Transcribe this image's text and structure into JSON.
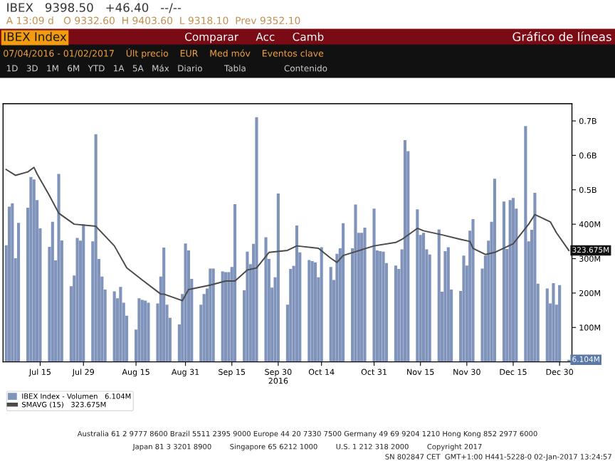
{
  "chart_data": {
    "type": "bar",
    "title": "IBEX Index",
    "subtitle": "Gráfico de líneas",
    "x": [
      "2016-07-04",
      "2016-07-05",
      "2016-07-06",
      "2016-07-07",
      "2016-07-08",
      "2016-07-11",
      "2016-07-12",
      "2016-07-13",
      "2016-07-14",
      "2016-07-15",
      "2016-07-18",
      "2016-07-19",
      "2016-07-20",
      "2016-07-21",
      "2016-07-22",
      "2016-07-25",
      "2016-07-26",
      "2016-07-27",
      "2016-07-28",
      "2016-07-29",
      "2016-08-01",
      "2016-08-02",
      "2016-08-03",
      "2016-08-04",
      "2016-08-05",
      "2016-08-08",
      "2016-08-09",
      "2016-08-10",
      "2016-08-11",
      "2016-08-12",
      "2016-08-15",
      "2016-08-16",
      "2016-08-17",
      "2016-08-18",
      "2016-08-19",
      "2016-08-22",
      "2016-08-23",
      "2016-08-24",
      "2016-08-25",
      "2016-08-26",
      "2016-08-29",
      "2016-08-30",
      "2016-08-31",
      "2016-09-01",
      "2016-09-02",
      "2016-09-05",
      "2016-09-06",
      "2016-09-07",
      "2016-09-08",
      "2016-09-09",
      "2016-09-12",
      "2016-09-13",
      "2016-09-14",
      "2016-09-15",
      "2016-09-16",
      "2016-09-19",
      "2016-09-20",
      "2016-09-21",
      "2016-09-22",
      "2016-09-23",
      "2016-09-26",
      "2016-09-27",
      "2016-09-28",
      "2016-09-29",
      "2016-09-30",
      "2016-10-03",
      "2016-10-04",
      "2016-10-05",
      "2016-10-06",
      "2016-10-07",
      "2016-10-10",
      "2016-10-11",
      "2016-10-12",
      "2016-10-13",
      "2016-10-14",
      "2016-10-17",
      "2016-10-18",
      "2016-10-19",
      "2016-10-20",
      "2016-10-21",
      "2016-10-24",
      "2016-10-25",
      "2016-10-26",
      "2016-10-27",
      "2016-10-28",
      "2016-10-31",
      "2016-11-01",
      "2016-11-02",
      "2016-11-03",
      "2016-11-04",
      "2016-11-07",
      "2016-11-08",
      "2016-11-09",
      "2016-11-10",
      "2016-11-11",
      "2016-11-14",
      "2016-11-15",
      "2016-11-16",
      "2016-11-17",
      "2016-11-18",
      "2016-11-21",
      "2016-11-22",
      "2016-11-23",
      "2016-11-24",
      "2016-11-25",
      "2016-11-28",
      "2016-11-29",
      "2016-11-30",
      "2016-12-01",
      "2016-12-02",
      "2016-12-05",
      "2016-12-06",
      "2016-12-07",
      "2016-12-08",
      "2016-12-09",
      "2016-12-12",
      "2016-12-13",
      "2016-12-14",
      "2016-12-15",
      "2016-12-16",
      "2016-12-19",
      "2016-12-20",
      "2016-12-21",
      "2016-12-22",
      "2016-12-23",
      "2016-12-26",
      "2016-12-27",
      "2016-12-28",
      "2016-12-29",
      "2016-12-30",
      "2017-01-02"
    ],
    "series": [
      {
        "name": "IBEX Index - Volumen   6.104M",
        "color": "#7f93bb",
        "values": [
          339000000.0,
          451000000.0,
          461000000.0,
          301000000.0,
          404000000.0,
          448000000.0,
          537000000.0,
          530000000.0,
          470000000.0,
          388000000.0,
          334000000.0,
          407000000.0,
          295000000.0,
          546000000.0,
          353000000.0,
          220000000.0,
          251000000.0,
          360000000.0,
          352000000.0,
          400000000.0,
          350000000.0,
          661000000.0,
          299000000.0,
          248000000.0,
          210000000.0,
          205000000.0,
          185000000.0,
          218000000.0,
          172000000.0,
          134000000.0,
          94000000.0,
          185000000.0,
          180000000.0,
          178000000.0,
          172000000.0,
          170000000.0,
          248000000.0,
          332000000.0,
          166000000.0,
          128000000.0,
          109000000.0,
          197000000.0,
          344000000.0,
          324000000.0,
          241000000.0,
          166000000.0,
          197000000.0,
          213000000.0,
          271000000.0,
          271000000.0,
          263000000.0,
          261000000.0,
          261000000.0,
          276000000.0,
          458000000.0,
          208000000.0,
          320000000.0,
          284000000.0,
          343000000.0,
          711000000.0,
          362000000.0,
          299000000.0,
          216000000.0,
          246000000.0,
          489000000.0,
          166000000.0,
          270000000.0,
          279000000.0,
          396000000.0,
          318000000.0,
          296000000.0,
          293000000.0,
          289000000.0,
          246000000.0,
          333000000.0,
          276000000.0,
          238000000.0,
          314000000.0,
          330000000.0,
          403000000.0,
          330000000.0,
          457000000.0,
          375000000.0,
          375000000.0,
          390000000.0,
          445000000.0,
          324000000.0,
          322000000.0,
          320000000.0,
          287000000.0,
          280000000.0,
          270000000.0,
          327000000.0,
          644000000.0,
          612000000.0,
          443000000.0,
          369000000.0,
          375000000.0,
          327000000.0,
          312000000.0,
          385000000.0,
          204000000.0,
          322000000.0,
          333000000.0,
          210000000.0,
          206000000.0,
          309000000.0,
          280000000.0,
          381000000.0,
          415000000.0,
          271000000.0,
          309000000.0,
          352000000.0,
          407000000.0,
          532000000.0,
          466000000.0,
          328000000.0,
          470000000.0,
          476000000.0,
          445000000.0,
          685000000.0,
          350000000.0,
          384000000.0,
          491000000.0,
          227000000.0,
          213000000.0,
          170000000.0,
          229000000.0,
          166000000.0,
          223000000.0,
          6104000.0
        ]
      },
      {
        "name": "SMAVG (15)   323.675M",
        "type": "line",
        "color": "#4a4a4a",
        "x": [
          "2016-07-04",
          "2016-07-07",
          "2016-07-11",
          "2016-07-13",
          "2016-07-14",
          "2016-07-18",
          "2016-07-21",
          "2016-07-26",
          "2016-08-02",
          "2016-08-08",
          "2016-08-12",
          "2016-08-17",
          "2016-08-23",
          "2016-08-24",
          "2016-08-30",
          "2016-09-01",
          "2016-09-08",
          "2016-09-13",
          "2016-09-16",
          "2016-09-20",
          "2016-09-23",
          "2016-09-27",
          "2016-10-03",
          "2016-10-06",
          "2016-10-13",
          "2016-10-17",
          "2016-10-19",
          "2016-10-21",
          "2016-10-31",
          "2016-11-07",
          "2016-11-09",
          "2016-11-14",
          "2016-11-16",
          "2016-11-22",
          "2016-11-28",
          "2016-12-01",
          "2016-12-02",
          "2016-12-06",
          "2016-12-09",
          "2016-12-15",
          "2016-12-20",
          "2016-12-22",
          "2016-12-27",
          "2016-12-29",
          "2017-01-02"
        ],
        "values": [
          559000000.0,
          542000000.0,
          552000000.0,
          565000000.0,
          546000000.0,
          483000000.0,
          432000000.0,
          400000000.0,
          394000000.0,
          337000000.0,
          273000000.0,
          238000000.0,
          197000000.0,
          197000000.0,
          178000000.0,
          210000000.0,
          223000000.0,
          235000000.0,
          235000000.0,
          267000000.0,
          273000000.0,
          318000000.0,
          324000000.0,
          337000000.0,
          330000000.0,
          301000000.0,
          289000000.0,
          309000000.0,
          337000000.0,
          347000000.0,
          356000000.0,
          388000000.0,
          381000000.0,
          369000000.0,
          356000000.0,
          350000000.0,
          330000000.0,
          312000000.0,
          318000000.0,
          343000000.0,
          400000000.0,
          428000000.0,
          407000000.0,
          375000000.0,
          323675000.0
        ]
      }
    ],
    "xlim": [
      "2016-07-04",
      "2017-01-02"
    ],
    "xticks": [
      {
        "value": "2016-07-15",
        "label": "Jul 15"
      },
      {
        "value": "2016-07-29",
        "label": "Jul 29"
      },
      {
        "value": "2016-08-15",
        "label": "Aug 15"
      },
      {
        "value": "2016-08-31",
        "label": "Aug 31"
      },
      {
        "value": "2016-09-15",
        "label": "Sep 15"
      },
      {
        "value": "2016-09-30",
        "label": "Sep 30\n2016"
      },
      {
        "value": "2016-10-14",
        "label": "Oct 14"
      },
      {
        "value": "2016-10-31",
        "label": "Oct 31"
      },
      {
        "value": "2016-11-15",
        "label": "Nov 15"
      },
      {
        "value": "2016-11-30",
        "label": "Nov 30"
      },
      {
        "value": "2016-12-15",
        "label": "Dec 15"
      },
      {
        "value": "2016-12-30",
        "label": "Dec 30"
      }
    ],
    "ylim": [
      0,
      750000000.0
    ],
    "yticks": [
      {
        "value": 100000000.0,
        "label": "100M"
      },
      {
        "value": 200000000.0,
        "label": "200M"
      },
      {
        "value": 300000000.0,
        "label": "300M"
      },
      {
        "value": 400000000.0,
        "label": "400M"
      },
      {
        "value": 500000000.0,
        "label": "0.5B"
      },
      {
        "value": 600000000.0,
        "label": "0.6B"
      },
      {
        "value": 700000000.0,
        "label": "0.7B"
      }
    ],
    "legend": "bottom left",
    "annotations": [
      "IBEX   9398.50   +46.40   --/--",
      "A 13:09 d   O 9332.60  H 9403.60  L 9318.10  Prev 9352.10",
      "Comparar     Acc     Camb",
      "07/04/2016 - 01/02/2017    Últ precio    EUR    Med móv    Eventos clave",
      "1D   3D   1M   6M   YTD   1A   5A   Máx   Diario        Tabla              Contenido",
      "Australia 61 2 9777 8600 Brazil 5511 2395 9000 Europe 44 20 7330 7500 Germany 49 69 9204 1210 Hong Kong 852 2977 6000",
      "Japan 81 3 3201 8900        Singapore 65 6212 1000        U.S. 1 212 318 2000        Copyright 2017",
      "SN 802847 CET  GMT+1:00 H441-5228-0 02-Jan-2017 13:24:57",
      {
        "text": "323.675M",
        "x": "2017-01-02",
        "y": 323675000.0
      },
      {
        "text": "6.104M",
        "x": "2017-01-02",
        "y": 6104000.0
      }
    ]
  }
}
